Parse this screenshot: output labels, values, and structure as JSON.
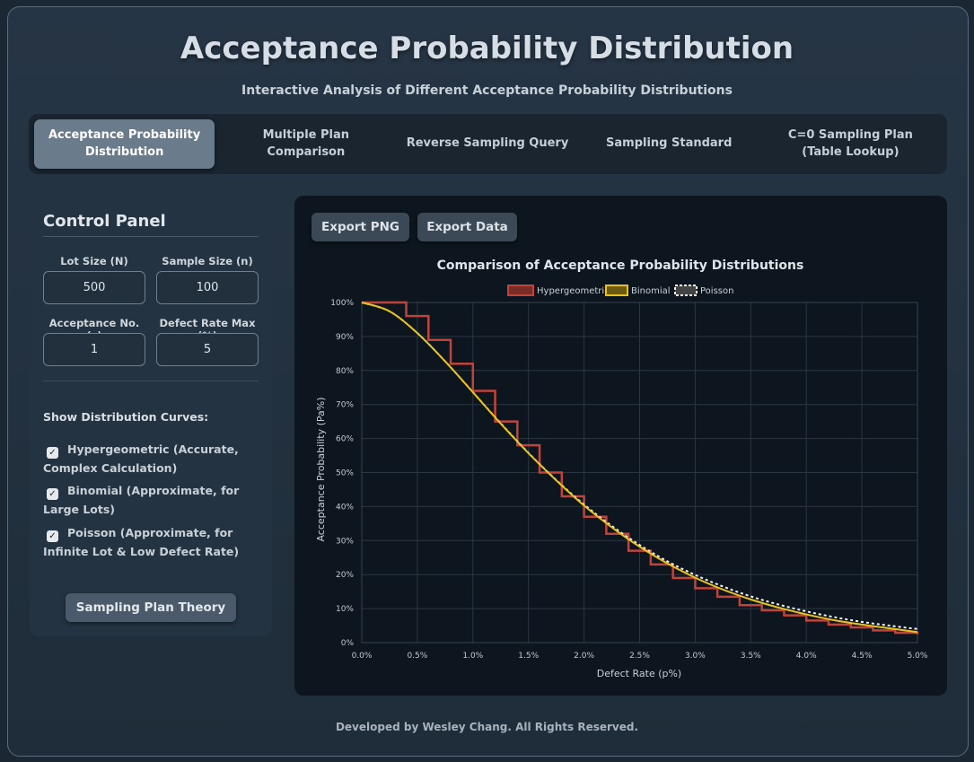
{
  "header": {
    "title": "Acceptance Probability Distribution",
    "subtitle": "Interactive Analysis of Different Acceptance Probability Distributions"
  },
  "tabs": [
    {
      "label": "Acceptance Probability Distribution",
      "active": true
    },
    {
      "label": "Multiple Plan Comparison",
      "active": false
    },
    {
      "label": "Reverse Sampling Query",
      "active": false
    },
    {
      "label": "Sampling Standard",
      "active": false
    },
    {
      "label": "C=0 Sampling Plan (Table Lookup)",
      "active": false
    }
  ],
  "control_panel": {
    "title": "Control Panel",
    "lot_size_label": "Lot Size (N)",
    "lot_size_value": "500",
    "sample_size_label": "Sample Size (n)",
    "sample_size_value": "100",
    "acceptance_label": "Acceptance No. (c)",
    "acceptance_value": "1",
    "defect_max_label": "Defect Rate Max (%)",
    "defect_max_value": "5",
    "show_curves_label": "Show Distribution Curves:",
    "curves": [
      {
        "label": "Hypergeometric (Accurate, Complex Calculation)",
        "checked": true
      },
      {
        "label": "Binomial (Approximate, for Large Lots)",
        "checked": true
      },
      {
        "label": "Poisson (Approximate, for Infinite Lot & Low Defect Rate)",
        "checked": true
      }
    ],
    "theory_button": "Sampling Plan Theory"
  },
  "chart_panel": {
    "export_png": "Export PNG",
    "export_data": "Export Data"
  },
  "colors": {
    "hypergeometric": "#c0443c",
    "binomial": "#e8c21e",
    "poisson": "#f2f2f2",
    "chart_bg": "#0d161e"
  },
  "chart_data": {
    "type": "line",
    "title": "Comparison of Acceptance Probability Distributions",
    "xlabel": "Defect Rate (p%)",
    "ylabel": "Acceptance Probability (Pa%)",
    "xlim": [
      0,
      5
    ],
    "ylim": [
      0,
      100
    ],
    "x_ticks": [
      "0.0%",
      "0.5%",
      "1.0%",
      "1.5%",
      "2.0%",
      "2.5%",
      "3.0%",
      "3.5%",
      "4.0%",
      "4.5%",
      "5.0%"
    ],
    "y_ticks": [
      "0%",
      "10%",
      "20%",
      "30%",
      "40%",
      "50%",
      "60%",
      "70%",
      "80%",
      "90%",
      "100%"
    ],
    "grid": true,
    "legend_position": "top",
    "series": [
      {
        "name": "Hypergeometric",
        "style": "step",
        "x": [
          0.0,
          0.2,
          0.4,
          0.6,
          0.8,
          1.0,
          1.2,
          1.4,
          1.6,
          1.8,
          2.0,
          2.2,
          2.4,
          2.6,
          2.8,
          3.0,
          3.2,
          3.4,
          3.6,
          3.8,
          4.0,
          4.2,
          4.4,
          4.6,
          4.8,
          5.0
        ],
        "values": [
          100,
          100,
          96,
          89,
          82,
          74,
          65,
          58,
          50,
          43,
          37,
          32,
          27,
          23,
          19,
          16,
          13.5,
          11,
          9.5,
          8,
          6.5,
          5.3,
          4.5,
          3.6,
          2.9,
          2.4
        ]
      },
      {
        "name": "Binomial",
        "style": "line",
        "x": [
          0.0,
          0.25,
          0.5,
          0.75,
          1.0,
          1.25,
          1.5,
          1.75,
          2.0,
          2.25,
          2.5,
          2.75,
          3.0,
          3.25,
          3.5,
          3.75,
          4.0,
          4.25,
          4.5,
          4.75,
          5.0
        ],
        "values": [
          100,
          97.4,
          91.0,
          82.7,
          73.6,
          64.4,
          55.7,
          47.7,
          40.3,
          33.9,
          28.2,
          23.3,
          19.1,
          15.6,
          12.7,
          10.3,
          8.3,
          6.6,
          5.3,
          4.2,
          3.1
        ]
      },
      {
        "name": "Poisson",
        "style": "dashed",
        "x": [
          0.0,
          0.25,
          0.5,
          0.75,
          1.0,
          1.25,
          1.5,
          1.75,
          2.0,
          2.25,
          2.5,
          2.75,
          3.0,
          3.25,
          3.5,
          3.75,
          4.0,
          4.25,
          4.5,
          4.75,
          5.0
        ],
        "values": [
          100,
          97.4,
          91.0,
          82.7,
          73.6,
          64.5,
          55.8,
          47.8,
          40.6,
          34.3,
          28.7,
          23.9,
          19.9,
          16.5,
          13.6,
          11.2,
          9.2,
          7.5,
          6.1,
          5.0,
          4.0
        ]
      }
    ]
  },
  "footer": {
    "text": "Developed by Wesley Chang. All Rights Reserved."
  }
}
